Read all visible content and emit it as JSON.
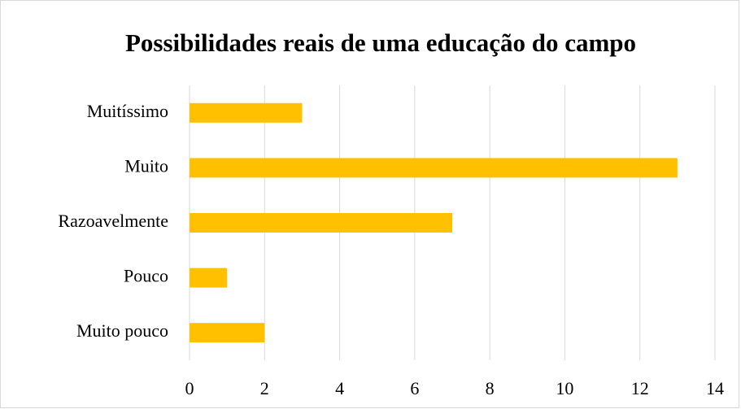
{
  "chart_data": {
    "type": "barh",
    "title": "Possibilidades reais de uma educação do campo",
    "categories": [
      "Muitíssimo",
      "Muito",
      "Razoavelmente",
      "Pouco",
      "Muito pouco"
    ],
    "values": [
      3,
      13,
      7,
      1,
      2
    ],
    "color": "#ffc000",
    "xlim": [
      0,
      14
    ],
    "xticks": [
      0,
      2,
      4,
      6,
      8,
      10,
      12,
      14
    ],
    "grid": true
  }
}
